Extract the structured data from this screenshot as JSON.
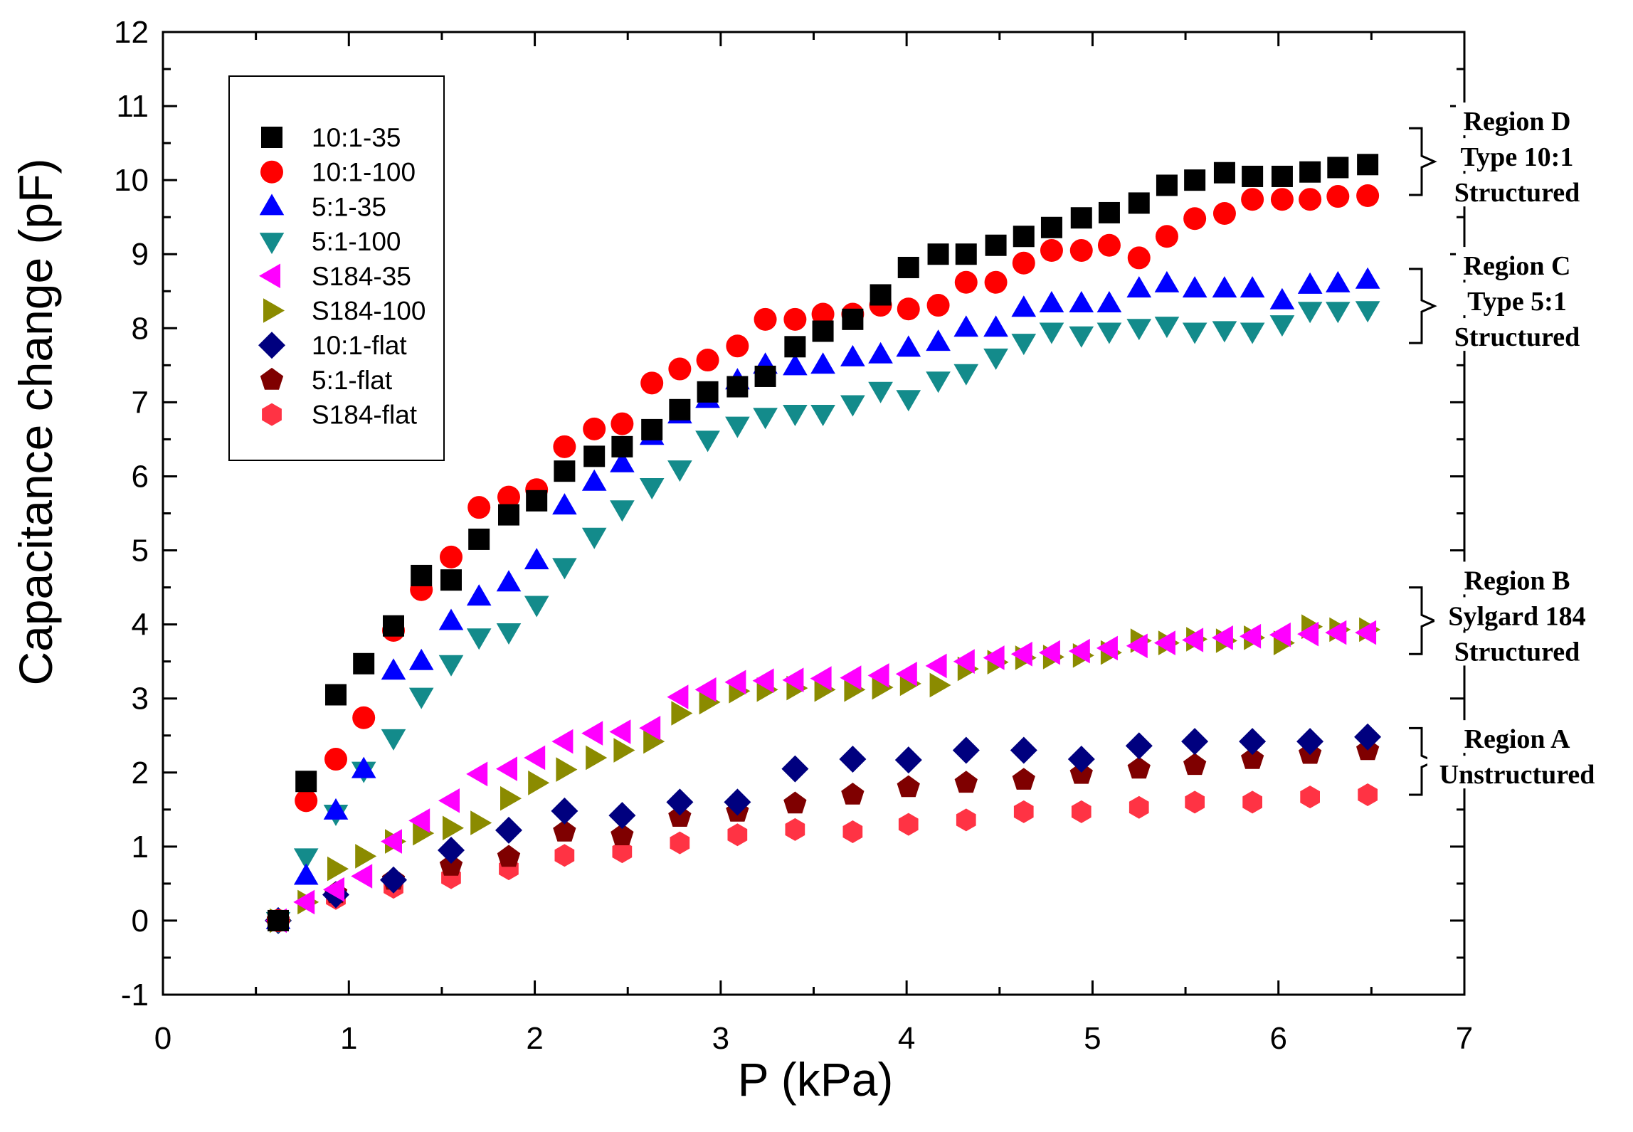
{
  "chart_data": {
    "type": "scatter",
    "xlabel": "P (kPa)",
    "ylabel": "Capacitance change (pF)",
    "xlim": [
      0,
      7
    ],
    "ylim": [
      -1,
      12
    ],
    "x_ticks": [
      0,
      1,
      2,
      3,
      4,
      5,
      6,
      7
    ],
    "y_ticks": [
      -1,
      0,
      1,
      2,
      3,
      4,
      5,
      6,
      7,
      8,
      9,
      10,
      11,
      12
    ],
    "grid": false,
    "legend_position": "top-left",
    "x": [
      0.62,
      0.77,
      0.93,
      1.08,
      1.24,
      1.39,
      1.55,
      1.7,
      1.86,
      2.01,
      2.16,
      2.32,
      2.47,
      2.63,
      2.78,
      2.93,
      3.09,
      3.24,
      3.4,
      3.55,
      3.71,
      3.86,
      4.01,
      4.17,
      4.32,
      4.48,
      4.63,
      4.78,
      4.94,
      5.09,
      5.25,
      5.4,
      5.55,
      5.71,
      5.86,
      6.02,
      6.17,
      6.32,
      6.48
    ],
    "series": [
      {
        "name": "10:1-35",
        "marker": "square",
        "color": "#000000",
        "values": [
          0.0,
          1.88,
          3.05,
          3.47,
          3.98,
          4.66,
          4.6,
          5.15,
          5.48,
          5.67,
          6.07,
          6.27,
          6.4,
          6.63,
          6.9,
          7.14,
          7.21,
          7.35,
          7.75,
          7.96,
          8.12,
          8.45,
          8.82,
          9.0,
          9.0,
          9.12,
          9.24,
          9.36,
          9.49,
          9.56,
          9.69,
          9.93,
          10.0,
          10.1,
          10.05,
          10.05,
          10.11,
          10.17,
          10.21
        ]
      },
      {
        "name": "10:1-100",
        "marker": "circle",
        "color": "#ff0000",
        "values": [
          0.0,
          1.62,
          2.18,
          2.74,
          3.92,
          4.47,
          4.91,
          5.58,
          5.72,
          5.82,
          6.4,
          6.64,
          6.71,
          7.26,
          7.45,
          7.57,
          7.76,
          8.12,
          8.12,
          8.19,
          8.19,
          8.31,
          8.26,
          8.31,
          8.62,
          8.62,
          8.88,
          9.05,
          9.05,
          9.12,
          8.95,
          9.24,
          9.48,
          9.55,
          9.74,
          9.74,
          9.74,
          9.78,
          9.79
        ]
      },
      {
        "name": "5:1-35",
        "marker": "triangle-up",
        "color": "#0000ff",
        "values": [
          0.0,
          0.6,
          1.48,
          2.04,
          3.37,
          3.5,
          4.04,
          4.37,
          4.56,
          4.86,
          5.6,
          5.92,
          6.17,
          6.54,
          6.83,
          7.04,
          7.29,
          7.5,
          7.48,
          7.5,
          7.6,
          7.64,
          7.73,
          7.81,
          8.0,
          8.0,
          8.27,
          8.33,
          8.33,
          8.33,
          8.53,
          8.6,
          8.53,
          8.53,
          8.53,
          8.37,
          8.58,
          8.6,
          8.65
        ]
      },
      {
        "name": "5:1-100",
        "marker": "triangle-down",
        "color": "#138b8b",
        "values": [
          0.0,
          0.86,
          1.45,
          2.03,
          2.47,
          3.03,
          3.47,
          3.83,
          3.9,
          4.27,
          4.78,
          5.19,
          5.56,
          5.86,
          6.1,
          6.5,
          6.69,
          6.81,
          6.85,
          6.85,
          6.98,
          7.16,
          7.05,
          7.3,
          7.4,
          7.61,
          7.81,
          7.96,
          7.91,
          7.96,
          8.01,
          8.04,
          7.96,
          7.98,
          7.96,
          8.06,
          8.24,
          8.24,
          8.25
        ]
      },
      {
        "name": "S184-35",
        "marker": "triangle-left",
        "color": "#ff00ff",
        "values": [
          0.0,
          0.25,
          0.42,
          0.6,
          1.07,
          1.35,
          1.62,
          1.98,
          2.05,
          2.2,
          2.42,
          2.53,
          2.55,
          2.6,
          3.02,
          3.12,
          3.22,
          3.24,
          3.25,
          3.27,
          3.28,
          3.31,
          3.33,
          3.44,
          3.5,
          3.55,
          3.6,
          3.62,
          3.64,
          3.68,
          3.71,
          3.75,
          3.79,
          3.82,
          3.84,
          3.86,
          3.87,
          3.89,
          3.89
        ]
      },
      {
        "name": "S184-100",
        "marker": "triangle-right",
        "color": "#8b8b00",
        "values": [
          0.0,
          0.25,
          0.7,
          0.87,
          1.07,
          1.18,
          1.25,
          1.32,
          1.65,
          1.86,
          2.04,
          2.2,
          2.3,
          2.42,
          2.8,
          2.95,
          3.1,
          3.12,
          3.14,
          3.12,
          3.12,
          3.15,
          3.2,
          3.18,
          3.4,
          3.49,
          3.55,
          3.56,
          3.58,
          3.62,
          3.78,
          3.75,
          3.8,
          3.78,
          3.82,
          3.75,
          3.97,
          3.93,
          3.93
        ]
      },
      {
        "name": "10:1-flat",
        "marker": "diamond",
        "color": "#00007f",
        "values": [
          0.0,
          null,
          0.35,
          null,
          0.55,
          null,
          0.95,
          null,
          1.22,
          null,
          1.48,
          null,
          1.42,
          null,
          1.6,
          null,
          1.6,
          null,
          2.05,
          null,
          2.18,
          null,
          2.17,
          null,
          2.3,
          null,
          2.3,
          null,
          2.18,
          null,
          2.36,
          null,
          2.42,
          null,
          2.42,
          null,
          2.42,
          null,
          2.48
        ]
      },
      {
        "name": "5:1-flat",
        "marker": "pentagon",
        "color": "#7f0000",
        "values": [
          0.0,
          null,
          0.37,
          null,
          0.55,
          null,
          0.74,
          null,
          0.86,
          null,
          1.2,
          null,
          1.15,
          null,
          1.4,
          null,
          1.47,
          null,
          1.58,
          null,
          1.7,
          null,
          1.8,
          null,
          1.86,
          null,
          1.9,
          null,
          1.98,
          null,
          2.05,
          null,
          2.1,
          null,
          2.18,
          null,
          2.25,
          null,
          2.3
        ]
      },
      {
        "name": "S184-flat",
        "marker": "hexagon",
        "color": "#ff3344",
        "values": [
          0.0,
          null,
          0.3,
          null,
          0.45,
          null,
          0.58,
          null,
          0.7,
          null,
          0.88,
          null,
          0.93,
          null,
          1.05,
          null,
          1.16,
          null,
          1.23,
          null,
          1.2,
          null,
          1.3,
          null,
          1.36,
          null,
          1.47,
          null,
          1.47,
          null,
          1.53,
          null,
          1.6,
          null,
          1.6,
          null,
          1.67,
          null,
          1.7
        ]
      }
    ],
    "annotations": [
      {
        "id": "region-d",
        "lines": [
          "Region D",
          "Type 10:1",
          "Structured"
        ],
        "y_range": [
          9.8,
          10.7
        ]
      },
      {
        "id": "region-c",
        "lines": [
          "Region C",
          "Type 5:1",
          "Structured"
        ],
        "y_range": [
          7.8,
          8.8
        ]
      },
      {
        "id": "region-b",
        "lines": [
          "Region B",
          "Sylgard 184",
          "Structured"
        ],
        "y_range": [
          3.6,
          4.5
        ]
      },
      {
        "id": "region-a",
        "lines": [
          "Region A",
          "Unstructured"
        ],
        "y_range": [
          1.7,
          2.6
        ]
      }
    ]
  }
}
